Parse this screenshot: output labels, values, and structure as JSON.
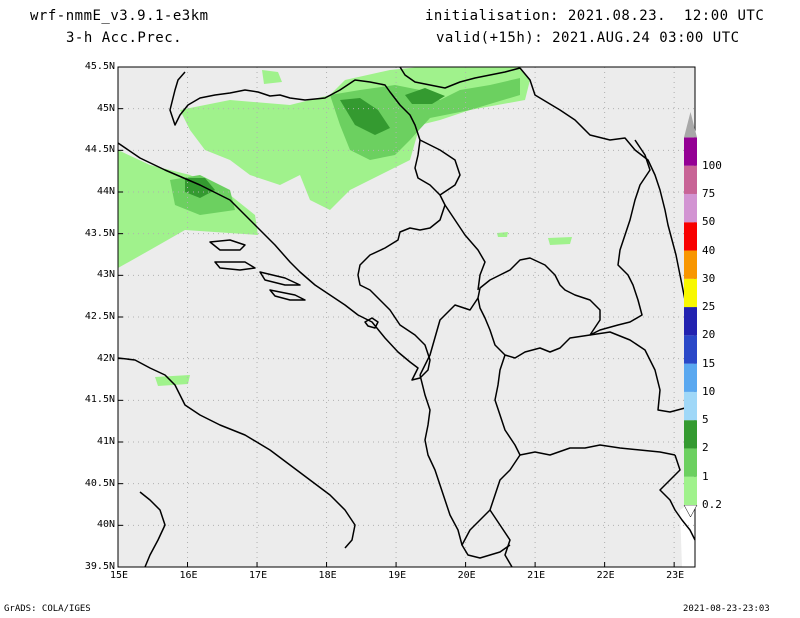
{
  "header": {
    "model": "wrf-nmmE_v3.9.1-e3km",
    "field": "3-h Acc.Prec.",
    "init": "initialisation: 2021.08.23.  12:00 UTC",
    "valid": "valid(+15h): 2021.AUG.24 03:00 UTC"
  },
  "axes": {
    "lon_labels": [
      "15E",
      "16E",
      "17E",
      "18E",
      "19E",
      "20E",
      "21E",
      "22E",
      "23E"
    ],
    "lat_labels": [
      "45.5N",
      "45N",
      "44.5N",
      "44N",
      "43.5N",
      "43N",
      "42.5N",
      "42N",
      "41.5N",
      "41N",
      "40.5N",
      "40N",
      "39.5N"
    ],
    "lon_range": [
      15,
      23.3
    ],
    "lat_range": [
      39.5,
      45.5
    ]
  },
  "colorbar": {
    "levels": [
      "0.2",
      "1",
      "2",
      "5",
      "10",
      "15",
      "20",
      "25",
      "30",
      "40",
      "50",
      "75",
      "100"
    ],
    "colors": [
      "#a0f28c",
      "#6cd060",
      "#349a30",
      "#a0d8f8",
      "#5aa8f0",
      "#2a48c8",
      "#2222b0",
      "#f8f800",
      "#f89600",
      "#f80000",
      "#d294d2",
      "#c86496",
      "#940094",
      "#a8a8a8"
    ]
  },
  "footer": {
    "left": "GrADS: COLA/IGES",
    "right": "2021-08-23-23:03"
  },
  "colors": {
    "land": "#ececec",
    "border": "#000000",
    "grid": "#b0b0b0",
    "precip_light": "#a0f28c",
    "precip_mid": "#6cd060",
    "precip_heavy": "#349a30"
  }
}
